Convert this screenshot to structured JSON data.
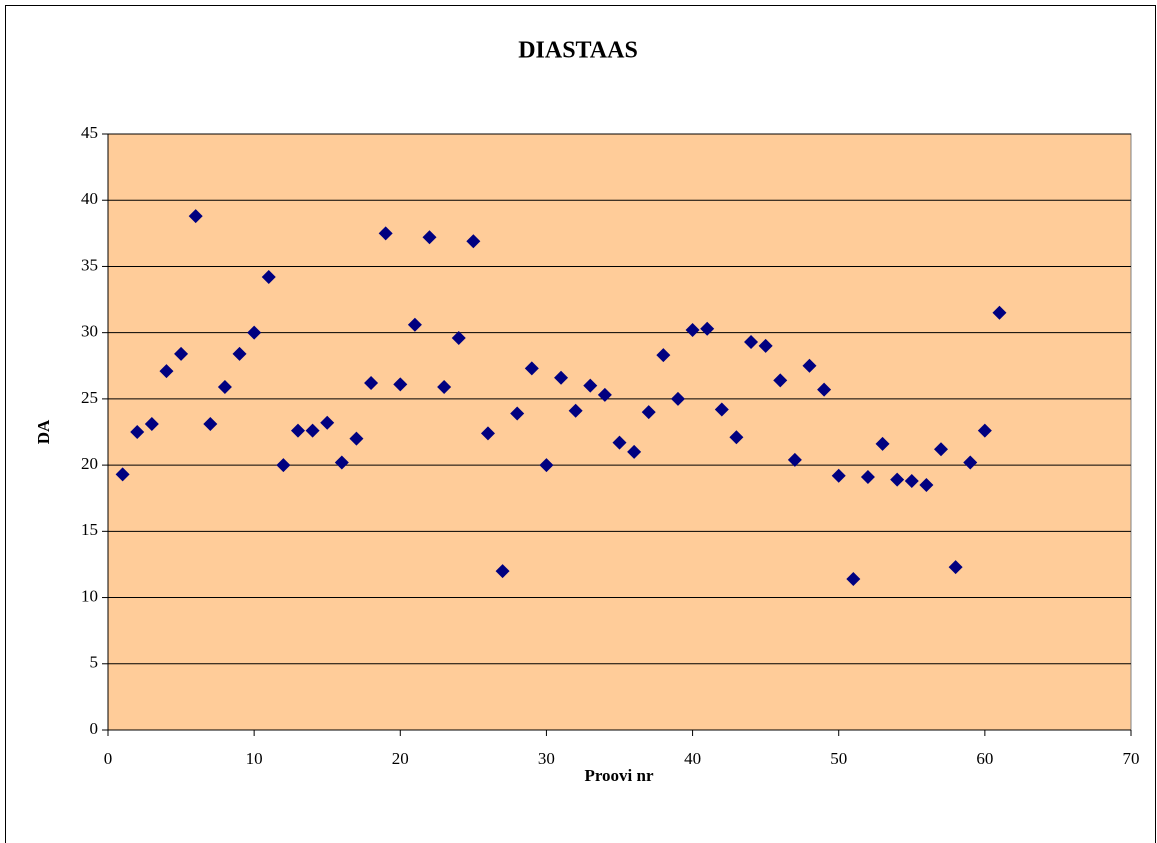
{
  "chart_data": {
    "type": "scatter",
    "title": "DIASTAAS",
    "xlabel": "Proovi nr",
    "ylabel": "DA",
    "series": [
      {
        "name": "DA",
        "color": "#000080",
        "x": [
          1,
          2,
          3,
          4,
          5,
          6,
          7,
          8,
          9,
          10,
          11,
          12,
          13,
          14,
          15,
          16,
          17,
          18,
          19,
          20,
          21,
          22,
          23,
          24,
          25,
          26,
          27,
          28,
          29,
          30,
          31,
          32,
          33,
          34,
          35,
          36,
          37,
          38,
          39,
          40,
          41,
          42,
          43,
          44,
          45,
          46,
          47,
          48,
          49,
          50,
          51,
          52,
          53,
          54,
          55,
          56,
          57,
          58,
          59,
          60,
          61
        ],
        "values": [
          19.3,
          22.5,
          23.1,
          27.1,
          28.4,
          38.8,
          23.1,
          25.9,
          28.4,
          30.0,
          34.2,
          20.0,
          22.6,
          22.6,
          23.2,
          20.2,
          22.0,
          26.2,
          37.5,
          26.1,
          30.6,
          37.2,
          25.9,
          29.6,
          36.9,
          22.4,
          12.0,
          23.9,
          27.3,
          20.0,
          26.6,
          24.1,
          26.0,
          25.3,
          21.7,
          21.0,
          24.0,
          28.3,
          25.0,
          30.2,
          30.3,
          24.2,
          22.1,
          29.3,
          29.0,
          26.4,
          20.4,
          27.5,
          25.7,
          19.2,
          11.4,
          19.1,
          21.6,
          18.9,
          18.8,
          18.5,
          21.2,
          12.3,
          20.2,
          22.6,
          31.5
        ]
      }
    ],
    "xlim": [
      0,
      70
    ],
    "xticks": [
      0,
      10,
      20,
      30,
      40,
      50,
      60,
      70
    ],
    "ylim": [
      0,
      45
    ],
    "yticks": [
      0,
      5,
      10,
      15,
      20,
      25,
      30,
      35,
      40,
      45
    ],
    "grid": true,
    "plot_background": "#FFCC99"
  }
}
